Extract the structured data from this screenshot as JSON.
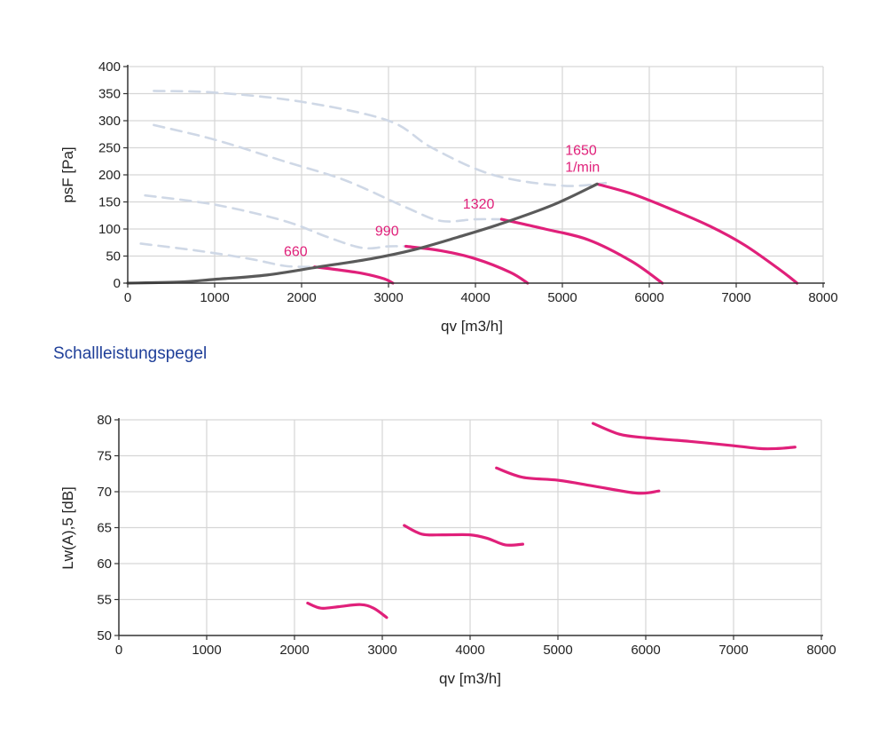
{
  "colors": {
    "grid": "#d6d6d6",
    "axis": "#333333",
    "magenta": "#e0207a",
    "system": "#5a5a5a",
    "dashed": "#cfd8e6",
    "title": "#1f3f99"
  },
  "section_title": "Schallleistungspegel",
  "chart_data": [
    {
      "type": "line",
      "xlabel": "qv [m3/h]",
      "ylabel": "psF [Pa]",
      "xlim": [
        0,
        8000
      ],
      "ylim": [
        0,
        400
      ],
      "xticks": [
        0,
        1000,
        2000,
        3000,
        4000,
        5000,
        6000,
        7000,
        8000
      ],
      "yticks": [
        0,
        50,
        100,
        150,
        200,
        250,
        300,
        350,
        400
      ],
      "xtick_labels": [
        "0",
        "1000",
        "2000",
        "3000",
        "4000",
        "5000",
        "6000",
        "7000",
        "8000"
      ],
      "ytick_labels": [
        "0",
        "50",
        "100",
        "150",
        "200",
        "250",
        "300",
        "350",
        "400"
      ],
      "grid": true,
      "series": [
        {
          "style": "magenta",
          "label": "660",
          "x": [
            2150,
            2400,
            2700,
            2950,
            3050
          ],
          "y": [
            30,
            25,
            18,
            8,
            0
          ]
        },
        {
          "style": "magenta",
          "label": "990",
          "x": [
            3200,
            3600,
            4000,
            4400,
            4600
          ],
          "y": [
            68,
            60,
            45,
            20,
            0
          ]
        },
        {
          "style": "magenta",
          "label": "1320",
          "x": [
            4300,
            4800,
            5300,
            5800,
            6150
          ],
          "y": [
            118,
            100,
            80,
            40,
            0
          ]
        },
        {
          "style": "magenta",
          "label": "1650",
          "label2": "1/min",
          "x": [
            5400,
            5800,
            6200,
            6700,
            7100,
            7500,
            7700
          ],
          "y": [
            183,
            165,
            140,
            105,
            70,
            25,
            0
          ]
        },
        {
          "style": "system",
          "x": [
            0,
            600,
            1000,
            1600,
            2200,
            2800,
            3300,
            3800,
            4300,
            4900,
            5400
          ],
          "y": [
            0,
            2,
            7,
            15,
            30,
            45,
            62,
            85,
            110,
            145,
            183
          ]
        },
        {
          "style": "dashed",
          "x": [
            300,
            1000,
            2000,
            3000,
            3500,
            4200,
            5000,
            5500
          ],
          "y": [
            355,
            352,
            335,
            300,
            250,
            200,
            180,
            185
          ]
        },
        {
          "style": "dashed",
          "x": [
            300,
            1000,
            1800,
            2500,
            3200,
            3600,
            4000,
            4300
          ],
          "y": [
            292,
            265,
            225,
            190,
            140,
            115,
            118,
            118
          ]
        },
        {
          "style": "dashed",
          "x": [
            200,
            1000,
            1800,
            2300,
            2700,
            3000,
            3200
          ],
          "y": [
            162,
            145,
            115,
            85,
            65,
            68,
            68
          ]
        },
        {
          "style": "dashed",
          "x": [
            150,
            800,
            1400,
            1800,
            2100
          ],
          "y": [
            73,
            60,
            45,
            32,
            30
          ]
        }
      ]
    },
    {
      "type": "line",
      "xlabel": "qv [m3/h]",
      "ylabel": "Lw(A),5 [dB]",
      "xlim": [
        0,
        8000
      ],
      "ylim": [
        50,
        80
      ],
      "xticks": [
        0,
        1000,
        2000,
        3000,
        4000,
        5000,
        6000,
        7000,
        8000
      ],
      "yticks": [
        50,
        55,
        60,
        65,
        70,
        75,
        80
      ],
      "xtick_labels": [
        "0",
        "1000",
        "2000",
        "3000",
        "4000",
        "5000",
        "6000",
        "7000",
        "8000"
      ],
      "ytick_labels": [
        "50",
        "55",
        "60",
        "65",
        "70",
        "75",
        "80"
      ],
      "grid": true,
      "series": [
        {
          "style": "magenta",
          "x": [
            2150,
            2300,
            2500,
            2750,
            2900,
            3050
          ],
          "y": [
            54.5,
            53.8,
            54.0,
            54.3,
            53.8,
            52.5
          ]
        },
        {
          "style": "magenta",
          "x": [
            3250,
            3450,
            3700,
            4000,
            4200,
            4400,
            4600
          ],
          "y": [
            65.3,
            64.1,
            64.0,
            64.0,
            63.5,
            62.6,
            62.7
          ]
        },
        {
          "style": "magenta",
          "x": [
            4300,
            4600,
            5000,
            5400,
            5900,
            6150
          ],
          "y": [
            73.3,
            72.0,
            71.6,
            70.8,
            69.8,
            70.1
          ]
        },
        {
          "style": "magenta",
          "x": [
            5400,
            5700,
            6000,
            6500,
            7000,
            7300,
            7500,
            7700
          ],
          "y": [
            79.5,
            78.0,
            77.5,
            77.0,
            76.4,
            76.0,
            76.0,
            76.2
          ]
        }
      ]
    }
  ]
}
